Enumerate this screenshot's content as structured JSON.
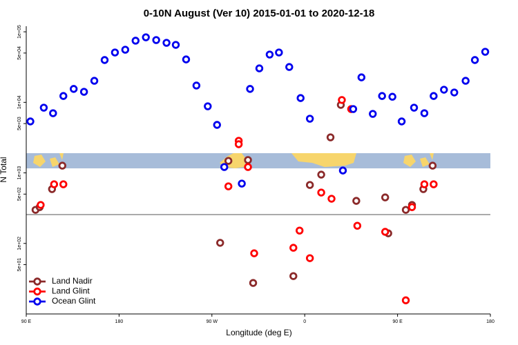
{
  "chart_data": {
    "type": "scatter",
    "title": "0-10N August (Ver 10)   2015-01-01 to 2020-12-18",
    "xlabel": "Longitude (deg E)",
    "ylabel": "N Total",
    "log_y": true,
    "legend": "lower left",
    "xlim": [
      90,
      540
    ],
    "xticks": [
      {
        "value": 90,
        "label": "90 E"
      },
      {
        "value": 180,
        "label": "180"
      },
      {
        "value": 270,
        "label": "90 W"
      },
      {
        "value": 360,
        "label": "0"
      },
      {
        "value": 450,
        "label": "90 E"
      },
      {
        "value": 540,
        "label": "180"
      }
    ],
    "ylim": [
      10,
      120000
    ],
    "yticks": [
      {
        "value": 100000,
        "label": "1e+05"
      },
      {
        "value": 50000,
        "label": "5e+04"
      },
      {
        "value": 10000,
        "label": "1e+04"
      },
      {
        "value": 5000,
        "label": "5e+03"
      },
      {
        "value": 1000,
        "label": "1e+03"
      },
      {
        "value": 500,
        "label": "5e+02"
      },
      {
        "value": 100,
        "label": "1e+02"
      },
      {
        "value": 50,
        "label": "5e+01"
      }
    ],
    "series": [
      {
        "name": "Land Nadir",
        "color": "#8b2a2a",
        "x": [
          99,
          103,
          115,
          125,
          286,
          305,
          278,
          310,
          349,
          365,
          376,
          385,
          395,
          410,
          438,
          441,
          458,
          464,
          475,
          484
        ],
        "values": [
          299,
          327,
          589,
          1265,
          1480,
          1520,
          102,
          27.5,
          34.4,
          674,
          944,
          3190,
          9200,
          401,
          449,
          139,
          299,
          351,
          589,
          1265
        ]
      },
      {
        "name": "Land Glint",
        "color": "#ff0000",
        "x": [
          104,
          117,
          126,
          296,
          296,
          305,
          286,
          311,
          349,
          355,
          365,
          376,
          386,
          396,
          405,
          411,
          438,
          458,
          464,
          476,
          485
        ],
        "values": [
          351,
          689,
          689,
          2850,
          2550,
          1210,
          644,
          72.4,
          86.7,
          152,
          61.8,
          526,
          430,
          10800,
          8030,
          178,
          146,
          15.6,
          327,
          689,
          689
        ]
      },
      {
        "name": "Ocean Glint",
        "color": "#0000ee",
        "x": [
          94,
          107,
          116,
          126,
          136,
          146,
          156,
          166,
          176,
          186,
          196,
          206,
          216,
          226,
          235,
          245,
          255,
          266,
          275,
          282,
          299,
          307,
          316,
          326,
          335,
          345,
          356,
          365,
          397,
          407,
          415,
          426,
          435,
          445,
          454,
          466,
          476,
          485,
          495,
          505,
          516,
          525,
          535
        ],
        "values": [
          5360,
          8400,
          7010,
          12300,
          15500,
          14100,
          20200,
          39800,
          50900,
          55700,
          74800,
          83600,
          76400,
          69800,
          65300,
          40600,
          17300,
          8790,
          4790,
          1210,
          705,
          15500,
          30300,
          47600,
          50900,
          31700,
          11500,
          5860,
          1080,
          8030,
          22600,
          6860,
          12300,
          12000,
          5360,
          8400,
          7010,
          12300,
          15100,
          13800,
          20200,
          39800,
          52100
        ]
      }
    ]
  }
}
